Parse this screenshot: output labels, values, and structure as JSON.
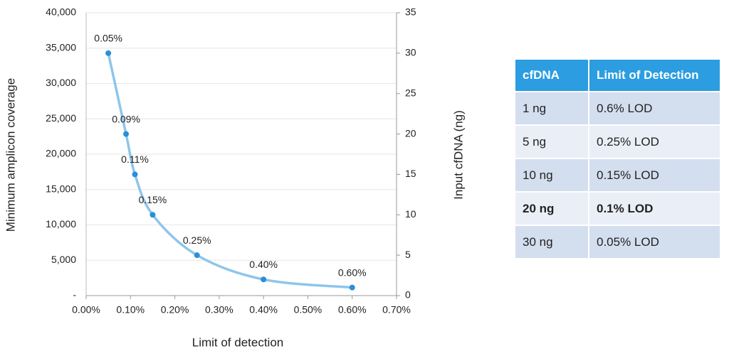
{
  "chart_data": {
    "type": "line",
    "x_axis_label": "Limit of detection",
    "y_axis_label": "Minimum amplicon coverage",
    "y2_axis_label": "Input cfDNA (ng)",
    "x": [
      0.05,
      0.09,
      0.11,
      0.15,
      0.25,
      0.4,
      0.6
    ],
    "x_labels": [
      "0.05%",
      "0.09%",
      "0.11%",
      "0.15%",
      "0.25%",
      "0.40%",
      "0.60%"
    ],
    "series": [
      {
        "color": "#8ec5ea",
        "marker_color": "#2a8fd8",
        "axis": "y2",
        "values": [
          30,
          20,
          15,
          10,
          5,
          2,
          1
        ]
      }
    ],
    "xlim": [
      0,
      0.7
    ],
    "xticks": [
      {
        "value": 0,
        "label": "0.00%"
      },
      {
        "value": 0.1,
        "label": "0.10%"
      },
      {
        "value": 0.2,
        "label": "0.20%"
      },
      {
        "value": 0.3,
        "label": "0.30%"
      },
      {
        "value": 0.4,
        "label": "0.40%"
      },
      {
        "value": 0.5,
        "label": "0.50%"
      },
      {
        "value": 0.6,
        "label": "0.60%"
      },
      {
        "value": 0.7,
        "label": "0.70%"
      }
    ],
    "ylim": [
      0,
      40000
    ],
    "yticks": [
      {
        "value": 0,
        "label": "-"
      },
      {
        "value": 5000,
        "label": "5,000"
      },
      {
        "value": 10000,
        "label": "10,000"
      },
      {
        "value": 15000,
        "label": "15,000"
      },
      {
        "value": 20000,
        "label": "20,000"
      },
      {
        "value": 25000,
        "label": "25,000"
      },
      {
        "value": 30000,
        "label": "30,000"
      },
      {
        "value": 35000,
        "label": "35,000"
      },
      {
        "value": 40000,
        "label": "40,000"
      }
    ],
    "y2lim": [
      0,
      35
    ],
    "y2ticks": [
      0,
      5,
      10,
      15,
      20,
      25,
      30,
      35
    ],
    "grid": true
  },
  "table": {
    "header": [
      "cfDNA",
      "Limit of Detection"
    ],
    "rows": [
      [
        "1 ng",
        "0.6% LOD"
      ],
      [
        "5 ng",
        "0.25% LOD"
      ],
      [
        "10 ng",
        "0.15% LOD"
      ],
      [
        "20 ng",
        "0.1% LOD"
      ],
      [
        "30 ng",
        "0.05% LOD"
      ]
    ],
    "bold_row": 3
  }
}
